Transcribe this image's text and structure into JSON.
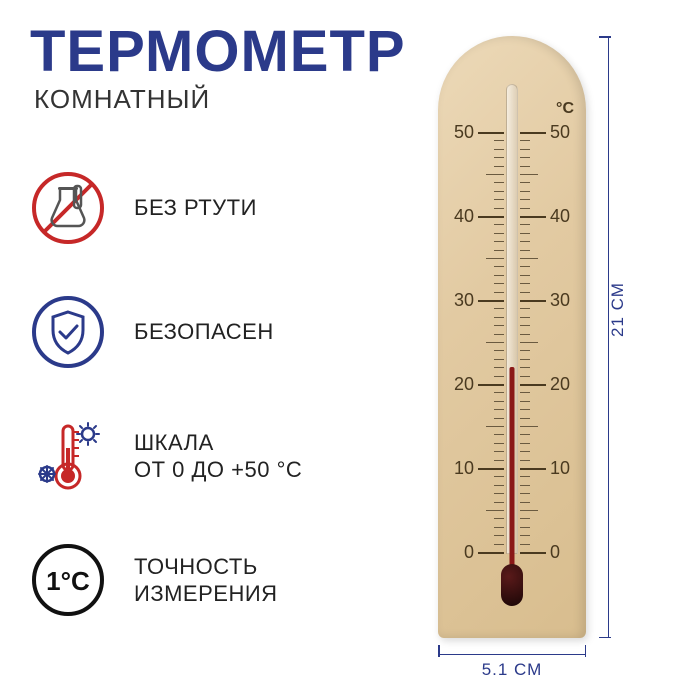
{
  "title": "ТЕРМОМЕТР",
  "subtitle": "КОМНАТНЫЙ",
  "title_color": "#2b3a8a",
  "features": [
    {
      "icon": "no-mercury",
      "text": "БЕЗ РТУТИ"
    },
    {
      "icon": "shield",
      "text": "БЕЗОПАСЕН"
    },
    {
      "icon": "thermo-range",
      "text": "ШКАЛА\nОТ 0 ДО +50 °С"
    },
    {
      "icon": "accuracy",
      "text": "ТОЧНОСТЬ\nИЗМЕРЕНИЯ",
      "badge": "1°C"
    }
  ],
  "thermometer": {
    "unit": "°C",
    "scale_min": 0,
    "scale_max": 50,
    "major_step": 10,
    "minor_step": 1,
    "current_value": 22,
    "scale_numbers": [
      50,
      40,
      30,
      20,
      10,
      0
    ],
    "wood_colors": [
      "#ecd9b8",
      "#e2caa2",
      "#d8bd8e"
    ],
    "mercury_color": "#8a1818",
    "bulb_color": "#1a0606",
    "number_color": "#4a3a20"
  },
  "dimensions": {
    "width_label": "5.1 СМ",
    "height_label": "21 СМ",
    "line_color": "#2b3a8a"
  },
  "icon_colors": {
    "red": "#c62828",
    "blue": "#2b3a8a",
    "grey": "#555555",
    "black": "#111111"
  }
}
